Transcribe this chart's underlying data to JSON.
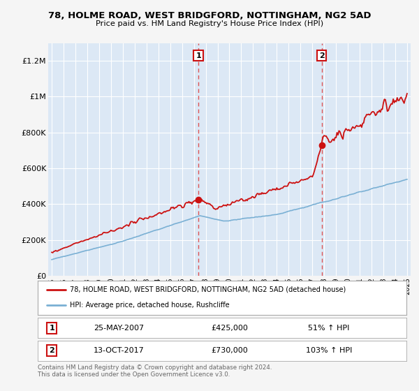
{
  "title": "78, HOLME ROAD, WEST BRIDGFORD, NOTTINGHAM, NG2 5AD",
  "subtitle": "Price paid vs. HM Land Registry's House Price Index (HPI)",
  "bg_color": "#f5f5f5",
  "plot_bg_color": "#dce8f5",
  "ylim": [
    0,
    1300000
  ],
  "yticks": [
    0,
    200000,
    400000,
    600000,
    800000,
    1000000,
    1200000
  ],
  "ytick_labels": [
    "£0",
    "£200K",
    "£400K",
    "£600K",
    "£800K",
    "£1M",
    "£1.2M"
  ],
  "sale1": {
    "date_num": 2007.38,
    "price": 425000,
    "label": "1",
    "date_str": "25-MAY-2007",
    "pct": "51% ↑ HPI"
  },
  "sale2": {
    "date_num": 2017.79,
    "price": 730000,
    "label": "2",
    "date_str": "13-OCT-2017",
    "pct": "103% ↑ HPI"
  },
  "red_line_color": "#cc1111",
  "blue_line_color": "#7ab0d4",
  "vline_color": "#dd4444",
  "legend_label_red": "78, HOLME ROAD, WEST BRIDGFORD, NOTTINGHAM, NG2 5AD (detached house)",
  "legend_label_blue": "HPI: Average price, detached house, Rushcliffe",
  "footer": "Contains HM Land Registry data © Crown copyright and database right 2024.\nThis data is licensed under the Open Government Licence v3.0.",
  "annotation_box_color": "#cc1111",
  "xstart": 1995,
  "xend": 2025
}
